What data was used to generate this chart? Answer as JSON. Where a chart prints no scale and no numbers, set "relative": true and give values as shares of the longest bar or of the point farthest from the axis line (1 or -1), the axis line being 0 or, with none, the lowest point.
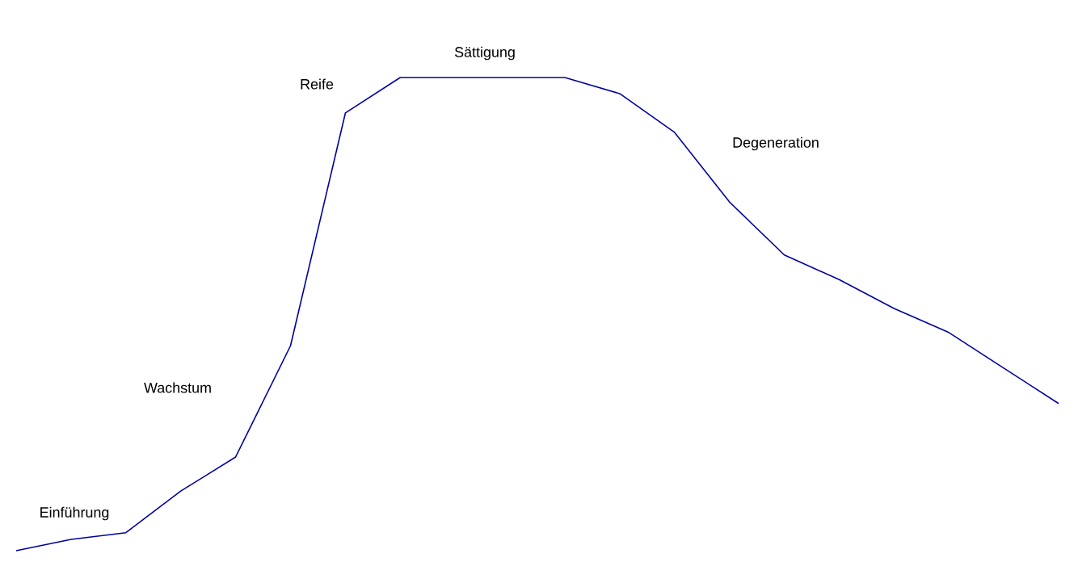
{
  "chart_data": {
    "type": "line",
    "relative": true,
    "color": "#0000a0",
    "categories": [
      null,
      null,
      null,
      null,
      null,
      null,
      null,
      null,
      null,
      null,
      null,
      null,
      null,
      null,
      null,
      null,
      null,
      null,
      null,
      null
    ],
    "values": [
      0,
      0.024,
      0.038,
      0.126,
      0.198,
      0.433,
      0.925,
      1,
      1,
      1,
      1,
      0.966,
      0.884,
      0.737,
      0.625,
      0.573,
      0.512,
      0.461,
      0.386,
      0.311
    ],
    "annotations": [
      "Einführung",
      "Wachstum",
      "Reife",
      "Sättigung",
      "Degeneration"
    ]
  }
}
